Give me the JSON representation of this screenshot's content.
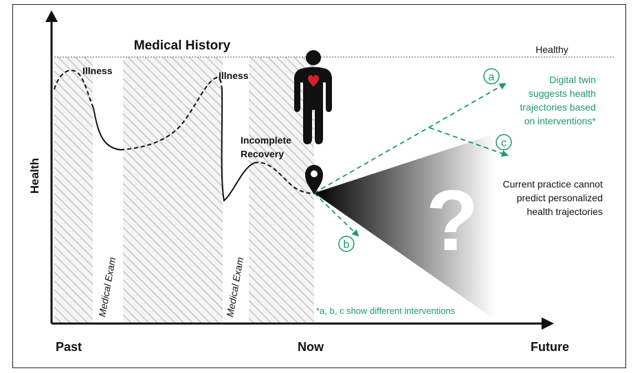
{
  "figure": {
    "title": "Medical History",
    "y_axis_label": "Health",
    "x_axis_ticks": {
      "past": "Past",
      "now": "Now",
      "future": "Future"
    },
    "healthy_label": "Healthy",
    "events": {
      "illness_1": "Illness",
      "illness_2": "Illness",
      "incomplete_recovery_line1": "Incomplete",
      "incomplete_recovery_line2": "Recovery",
      "exam_1": "Medical Exam",
      "exam_2": "Medical Exam"
    },
    "interventions": {
      "a": "a",
      "b": "b",
      "c": "c",
      "footnote": "*a, b, c show different interventions"
    },
    "digital_twin_text": [
      "Digital twin",
      "suggests health",
      "trajectories based",
      "on interventions*"
    ],
    "current_practice_text": [
      "Current practice cannot",
      "predict personalized",
      "health trajectories"
    ],
    "question_mark": "?",
    "colors": {
      "green": "#1a9a6a",
      "heart": "#d0202a",
      "figure": "#111111"
    }
  }
}
